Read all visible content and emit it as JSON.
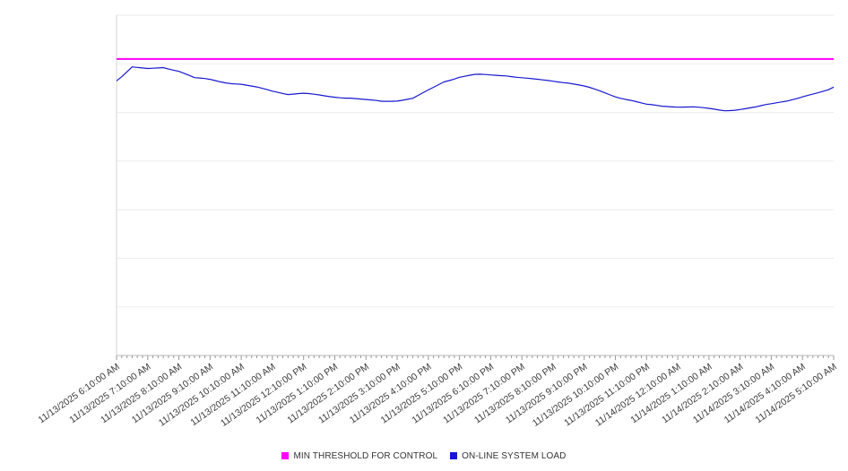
{
  "chart_data": {
    "type": "line",
    "title": "",
    "grid": "horizontal",
    "ylim": [
      0,
      7
    ],
    "x_tick_labels": [
      "11/13/2025 6:10:00 AM",
      "11/13/2025 7:10:00 AM",
      "11/13/2025 8:10:00 AM",
      "11/13/2025 9:10:00 AM",
      "11/13/2025 10:10:00 AM",
      "11/13/2025 11:10:00 AM",
      "11/13/2025 12:10:00 PM",
      "11/13/2025 1:10:00 PM",
      "11/13/2025 2:10:00 PM",
      "11/13/2025 3:10:00 PM",
      "11/13/2025 4:10:00 PM",
      "11/13/2025 5:10:00 PM",
      "11/13/2025 6:10:00 PM",
      "11/13/2025 7:10:00 PM",
      "11/13/2025 8:10:00 PM",
      "11/13/2025 9:10:00 PM",
      "11/13/2025 10:10:00 PM",
      "11/13/2025 11:10:00 PM",
      "11/14/2025 12:10:00 AM",
      "11/14/2025 1:10:00 AM",
      "11/14/2025 2:10:00 AM",
      "11/14/2025 3:10:00 AM",
      "11/14/2025 4:10:00 AM",
      "11/14/2025 5:10:00 AM"
    ],
    "x_minor_tick_minutes": 10,
    "series": [
      {
        "name": "MIN THRESHOLD FOR CONTROL",
        "type": "threshold",
        "color": "#ff00ff",
        "value": 6.1
      },
      {
        "name": "ON-LINE SYSTEM LOAD",
        "type": "line",
        "color": "#1717d1",
        "interval_minutes": 30,
        "values": [
          5.65,
          5.95,
          5.91,
          5.93,
          5.84,
          5.69,
          5.67,
          5.63,
          5.6,
          5.52,
          5.43,
          5.36,
          5.38,
          5.36,
          5.34,
          5.31,
          5.25,
          5.21,
          5.23,
          5.29,
          5.47,
          5.65,
          5.73,
          5.76,
          5.75,
          5.76,
          5.73,
          5.69,
          5.65,
          5.6,
          5.52,
          5.43,
          5.34,
          5.27,
          5.17,
          5.12,
          5.1,
          5.1,
          5.08,
          5.06,
          5.08,
          5.1,
          5.16,
          5.23,
          5.32,
          5.41,
          5.52
        ]
      }
    ],
    "legend_position": "bottom-center",
    "style": {
      "grid_color": "#ebebeb",
      "axis_color": "#b8b8b8",
      "left_border_color": "#d6d6d6",
      "tick_color": "#9a9a9a",
      "label_color": "#3c3c3c",
      "plot_bg": "#ffffff"
    }
  },
  "legend": {
    "items": [
      {
        "label": "MIN THRESHOLD FOR CONTROL",
        "color": "#ff00ff"
      },
      {
        "label": "ON-LINE SYSTEM LOAD",
        "color": "#1717d1"
      }
    ]
  }
}
